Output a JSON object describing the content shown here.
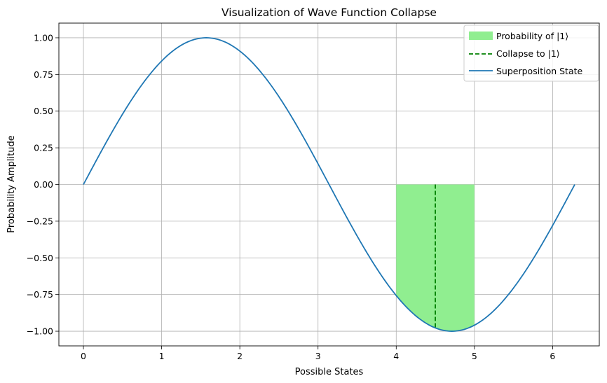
{
  "chart_data": {
    "type": "line",
    "title": "Visualization of Wave Function Collapse",
    "xlabel": "Possible States",
    "ylabel": "Probability Amplitude",
    "xlim": [
      -0.314,
      6.597
    ],
    "ylim": [
      -1.1,
      1.1
    ],
    "grid": true,
    "legend_position": "top-right",
    "xticks": [
      0,
      1,
      2,
      3,
      4,
      5,
      6
    ],
    "xtick_labels": [
      "0",
      "1",
      "2",
      "3",
      "4",
      "5",
      "6"
    ],
    "yticks": [
      1.0,
      0.75,
      0.5,
      0.25,
      0.0,
      -0.25,
      -0.5,
      -0.75,
      -1.0
    ],
    "ytick_labels": [
      "1.00",
      "0.75",
      "0.50",
      "0.25",
      "0.00",
      "−0.25",
      "−0.50",
      "−0.75",
      "−1.00"
    ],
    "series": [
      {
        "name": "Superposition State",
        "kind": "line",
        "color": "#1f77b4",
        "function": "sin(x)",
        "x_range": [
          0,
          6.283
        ],
        "samples": [
          [
            0.0,
            0.0
          ],
          [
            0.5,
            0.479
          ],
          [
            1.0,
            0.841
          ],
          [
            1.571,
            1.0
          ],
          [
            2.0,
            0.909
          ],
          [
            2.5,
            0.598
          ],
          [
            3.0,
            0.141
          ],
          [
            3.5,
            -0.351
          ],
          [
            4.0,
            -0.757
          ],
          [
            4.5,
            -0.978
          ],
          [
            4.712,
            -1.0
          ],
          [
            5.0,
            -0.959
          ],
          [
            5.5,
            -0.706
          ],
          [
            6.0,
            -0.279
          ],
          [
            6.283,
            0.0
          ]
        ]
      },
      {
        "name": "Probability of |1⟩",
        "kind": "fill_between",
        "color": "#90ee90",
        "x_range": [
          4.0,
          5.0
        ],
        "upper": 0.0,
        "lower": "sin(x)"
      },
      {
        "name": "Collapse to |1⟩",
        "kind": "vertical_dashed",
        "color": "#008000",
        "x": 4.5,
        "y_range": [
          -0.978,
          0.0
        ]
      }
    ]
  }
}
